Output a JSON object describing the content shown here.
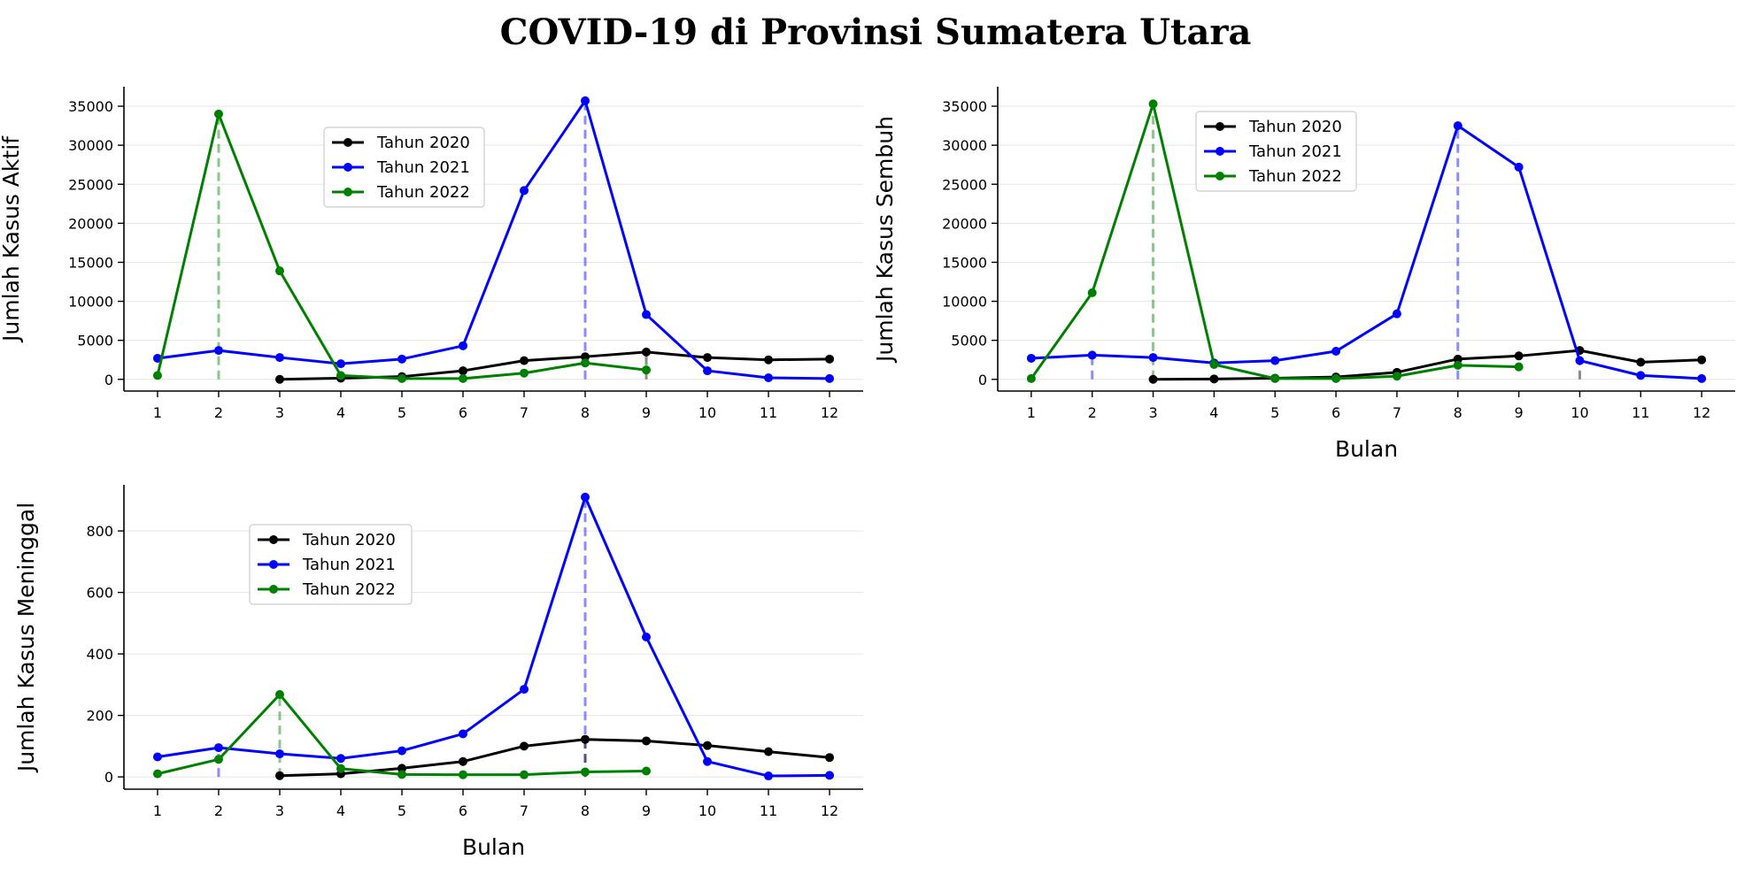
{
  "title": "COVID-19 di Provinsi Sumatera Utara",
  "colors": {
    "Tahun 2020": "#000000",
    "Tahun 2021": "#0000ff",
    "Tahun 2022": "#008000",
    "grid": "#e6e6e6"
  },
  "chart_data": [
    {
      "type": "line",
      "ylabel": "Jumlah Kasus Aktif",
      "xlabel": "",
      "x_ticks": [
        1,
        2,
        3,
        4,
        5,
        6,
        7,
        8,
        9,
        10,
        11,
        12
      ],
      "y_ticks": [
        0,
        5000,
        10000,
        15000,
        20000,
        25000,
        30000,
        35000
      ],
      "ylim": [
        -1500,
        37500
      ],
      "grid": "horizontal",
      "legend": "upper-center",
      "series": [
        {
          "name": "Tahun 2020",
          "x": [
            3,
            4,
            5,
            6,
            7,
            8,
            9,
            10,
            11,
            12
          ],
          "values": [
            0,
            150,
            350,
            1100,
            2400,
            2900,
            3500,
            2800,
            2500,
            2600
          ]
        },
        {
          "name": "Tahun 2021",
          "x": [
            1,
            2,
            3,
            4,
            5,
            6,
            7,
            8,
            9,
            10,
            11,
            12
          ],
          "values": [
            2700,
            3700,
            2800,
            2000,
            2600,
            4300,
            24200,
            35700,
            8300,
            1100,
            200,
            100
          ]
        },
        {
          "name": "Tahun 2022",
          "x": [
            1,
            2,
            3,
            4,
            5,
            6,
            7,
            8,
            9
          ],
          "values": [
            500,
            34000,
            13900,
            500,
            100,
            100,
            800,
            2100,
            1200
          ]
        }
      ],
      "peak_lines": [
        {
          "series": "Tahun 2021",
          "x": 8,
          "y": 35700
        },
        {
          "series": "Tahun 2022",
          "x": 2,
          "y": 34000
        },
        {
          "series": "Tahun 2020",
          "x": 9,
          "y": 3500
        }
      ]
    },
    {
      "type": "line",
      "ylabel": "Jumlah Kasus Sembuh",
      "xlabel": "Bulan",
      "x_ticks": [
        1,
        2,
        3,
        4,
        5,
        6,
        7,
        8,
        9,
        10,
        11,
        12
      ],
      "y_ticks": [
        0,
        5000,
        10000,
        15000,
        20000,
        25000,
        30000,
        35000
      ],
      "ylim": [
        -1500,
        37500
      ],
      "grid": "horizontal",
      "legend": "upper-center",
      "series": [
        {
          "name": "Tahun 2020",
          "x": [
            3,
            4,
            5,
            6,
            7,
            8,
            9,
            10,
            11,
            12
          ],
          "values": [
            0,
            50,
            150,
            300,
            900,
            2600,
            3000,
            3700,
            2200,
            2500
          ]
        },
        {
          "name": "Tahun 2021",
          "x": [
            1,
            2,
            3,
            4,
            5,
            6,
            7,
            8,
            9,
            10,
            11,
            12
          ],
          "values": [
            2700,
            3100,
            2800,
            2100,
            2400,
            3600,
            8400,
            32500,
            27200,
            2400,
            500,
            100
          ]
        },
        {
          "name": "Tahun 2022",
          "x": [
            1,
            2,
            3,
            4,
            5,
            6,
            7,
            8,
            9
          ],
          "values": [
            100,
            11100,
            35300,
            1900,
            100,
            100,
            400,
            1800,
            1600
          ]
        }
      ],
      "peak_lines": [
        {
          "series": "Tahun 2021",
          "x": 8,
          "y": 32500
        },
        {
          "series": "Tahun 2022",
          "x": 3,
          "y": 35300
        },
        {
          "series": "Tahun 2020",
          "x": 10,
          "y": 3700
        },
        {
          "series": "Tahun 2021",
          "x": 2,
          "y": 3100
        }
      ]
    },
    {
      "type": "line",
      "ylabel": "Jumlah Kasus Meninggal",
      "xlabel": "Bulan",
      "x_ticks": [
        1,
        2,
        3,
        4,
        5,
        6,
        7,
        8,
        9,
        10,
        11,
        12
      ],
      "y_ticks": [
        0,
        200,
        400,
        600,
        800
      ],
      "ylim": [
        -40,
        950
      ],
      "grid": "horizontal",
      "legend": "upper-left",
      "series": [
        {
          "name": "Tahun 2020",
          "x": [
            3,
            4,
            5,
            6,
            7,
            8,
            9,
            10,
            11,
            12
          ],
          "values": [
            4,
            10,
            28,
            50,
            100,
            122,
            117,
            102,
            82,
            63
          ]
        },
        {
          "name": "Tahun 2021",
          "x": [
            1,
            2,
            3,
            4,
            5,
            6,
            7,
            8,
            9,
            10,
            11,
            12
          ],
          "values": [
            65,
            95,
            75,
            60,
            85,
            140,
            285,
            910,
            455,
            50,
            3,
            5
          ]
        },
        {
          "name": "Tahun 2022",
          "x": [
            1,
            2,
            3,
            4,
            5,
            6,
            7,
            8,
            9
          ],
          "values": [
            10,
            57,
            268,
            27,
            8,
            7,
            7,
            16,
            19
          ]
        }
      ],
      "peak_lines": [
        {
          "series": "Tahun 2021",
          "x": 8,
          "y": 910
        },
        {
          "series": "Tahun 2022",
          "x": 3,
          "y": 268
        },
        {
          "series": "Tahun 2020",
          "x": 8,
          "y": 122
        },
        {
          "series": "Tahun 2021",
          "x": 2,
          "y": 95
        }
      ]
    }
  ]
}
